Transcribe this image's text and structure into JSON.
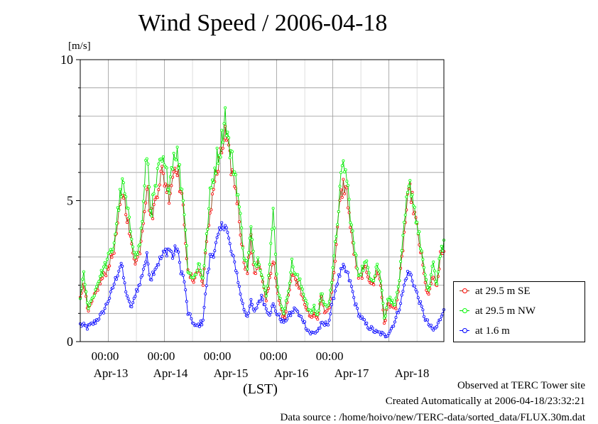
{
  "title": "Wind Speed / 2006-04-18",
  "footer": {
    "site": "Observed at TERC Tower site",
    "created": "Created Automatically at 2006-04-18/23:32:21",
    "source": "Data source : /home/hoivo/new/TERC-data/sorted_data/FLUX.30m.dat"
  },
  "chart_data": {
    "type": "line",
    "title": "Wind Speed / 2006-04-18",
    "ylabel": "[m/s]",
    "xlabel": "(LST)",
    "ylim": [
      0,
      10
    ],
    "y_ticks": [
      "0",
      "5",
      "10"
    ],
    "xlim": [
      "2006-04-12T12:00",
      "2006-04-18T24:00"
    ],
    "x_time_ticks": [
      "00:00",
      "00:00",
      "00:00",
      "00:00",
      "00:00"
    ],
    "x_date_labels": [
      "Apr-13",
      "Apr-14",
      "Apr-15",
      "Apr-16",
      "Apr-17",
      "Apr-18"
    ],
    "grid": true,
    "legend_position": "right",
    "sampling": "30-min",
    "series": [
      {
        "name": "at 29.5 m SE",
        "color": "#ff0000",
        "line_color": "#8b4513",
        "key_points": [
          [
            0,
            1.5
          ],
          [
            2,
            2.2
          ],
          [
            4,
            1.0
          ],
          [
            7,
            1.5
          ],
          [
            10,
            2.0
          ],
          [
            14,
            2.5
          ],
          [
            18,
            3.2
          ],
          [
            21,
            4.5
          ],
          [
            23,
            5.4
          ],
          [
            25,
            4.6
          ],
          [
            27,
            3.6
          ],
          [
            30,
            2.8
          ],
          [
            32,
            3.2
          ],
          [
            34,
            4.4
          ],
          [
            36,
            5.6
          ],
          [
            38,
            4.4
          ],
          [
            40,
            4.8
          ],
          [
            42,
            5.6
          ],
          [
            44,
            6.0
          ],
          [
            46,
            5.6
          ],
          [
            48,
            5.2
          ],
          [
            50,
            6.0
          ],
          [
            52,
            6.4
          ],
          [
            54,
            5.4
          ],
          [
            56,
            4.4
          ],
          [
            58,
            2.4
          ],
          [
            61,
            2.2
          ],
          [
            64,
            2.6
          ],
          [
            66,
            2.0
          ],
          [
            68,
            3.4
          ],
          [
            70,
            4.6
          ],
          [
            72,
            5.6
          ],
          [
            74,
            6.0
          ],
          [
            76,
            6.6
          ],
          [
            78,
            7.4
          ],
          [
            80,
            6.6
          ],
          [
            82,
            6.0
          ],
          [
            84,
            5.4
          ],
          [
            86,
            4.2
          ],
          [
            88,
            3.0
          ],
          [
            90,
            2.4
          ],
          [
            92,
            3.6
          ],
          [
            94,
            2.4
          ],
          [
            96,
            2.8
          ],
          [
            98,
            2.2
          ],
          [
            100,
            1.4
          ],
          [
            102,
            2.2
          ],
          [
            104,
            3.0
          ],
          [
            106,
            1.8
          ],
          [
            108,
            1.2
          ],
          [
            110,
            0.8
          ],
          [
            112,
            1.6
          ],
          [
            114,
            2.4
          ],
          [
            116,
            2.2
          ],
          [
            118,
            2.0
          ],
          [
            120,
            1.6
          ],
          [
            122,
            1.2
          ],
          [
            124,
            0.8
          ],
          [
            126,
            1.0
          ],
          [
            128,
            0.8
          ],
          [
            130,
            1.6
          ],
          [
            132,
            1.0
          ],
          [
            134,
            1.2
          ],
          [
            136,
            2.0
          ],
          [
            138,
            3.4
          ],
          [
            140,
            5.0
          ],
          [
            142,
            5.6
          ],
          [
            144,
            5.2
          ],
          [
            146,
            3.8
          ],
          [
            148,
            3.0
          ],
          [
            150,
            2.2
          ],
          [
            152,
            2.4
          ],
          [
            154,
            2.6
          ],
          [
            156,
            2.2
          ],
          [
            158,
            2.0
          ],
          [
            160,
            2.6
          ],
          [
            162,
            2.0
          ],
          [
            164,
            0.6
          ],
          [
            166,
            1.4
          ],
          [
            168,
            1.2
          ],
          [
            170,
            1.2
          ],
          [
            172,
            2.0
          ],
          [
            174,
            3.4
          ],
          [
            176,
            4.8
          ],
          [
            178,
            5.4
          ],
          [
            180,
            4.6
          ],
          [
            182,
            3.8
          ],
          [
            184,
            3.0
          ],
          [
            186,
            2.0
          ],
          [
            188,
            1.6
          ],
          [
            190,
            2.4
          ],
          [
            192,
            1.8
          ],
          [
            194,
            3.0
          ],
          [
            196,
            3.2
          ]
        ]
      },
      {
        "name": "at 29.5 m NW",
        "color": "#00ff00",
        "line_color": "#00d000",
        "key_points": [
          [
            0,
            1.6
          ],
          [
            2,
            2.4
          ],
          [
            4,
            1.2
          ],
          [
            7,
            1.6
          ],
          [
            10,
            2.2
          ],
          [
            14,
            2.8
          ],
          [
            18,
            3.4
          ],
          [
            21,
            5.0
          ],
          [
            23,
            5.6
          ],
          [
            25,
            4.8
          ],
          [
            27,
            4.0
          ],
          [
            30,
            3.0
          ],
          [
            32,
            3.4
          ],
          [
            34,
            4.8
          ],
          [
            36,
            6.8
          ],
          [
            38,
            4.6
          ],
          [
            40,
            5.2
          ],
          [
            42,
            6.0
          ],
          [
            44,
            6.4
          ],
          [
            46,
            6.0
          ],
          [
            48,
            5.6
          ],
          [
            50,
            6.6
          ],
          [
            52,
            6.8
          ],
          [
            54,
            5.8
          ],
          [
            56,
            4.8
          ],
          [
            58,
            2.6
          ],
          [
            61,
            2.2
          ],
          [
            64,
            2.8
          ],
          [
            66,
            2.2
          ],
          [
            68,
            3.6
          ],
          [
            70,
            5.2
          ],
          [
            72,
            6.0
          ],
          [
            74,
            6.6
          ],
          [
            76,
            7.0
          ],
          [
            78,
            8.2
          ],
          [
            80,
            7.0
          ],
          [
            82,
            6.4
          ],
          [
            84,
            5.8
          ],
          [
            86,
            4.6
          ],
          [
            88,
            3.2
          ],
          [
            90,
            2.6
          ],
          [
            92,
            4.0
          ],
          [
            94,
            2.6
          ],
          [
            96,
            3.0
          ],
          [
            98,
            2.4
          ],
          [
            100,
            1.6
          ],
          [
            102,
            2.8
          ],
          [
            104,
            4.6
          ],
          [
            106,
            2.2
          ],
          [
            108,
            1.4
          ],
          [
            110,
            1.0
          ],
          [
            112,
            1.8
          ],
          [
            114,
            2.8
          ],
          [
            116,
            2.4
          ],
          [
            118,
            2.2
          ],
          [
            120,
            1.8
          ],
          [
            122,
            1.4
          ],
          [
            124,
            1.0
          ],
          [
            126,
            1.2
          ],
          [
            128,
            0.9
          ],
          [
            130,
            1.8
          ],
          [
            132,
            1.2
          ],
          [
            134,
            1.4
          ],
          [
            136,
            2.4
          ],
          [
            138,
            3.8
          ],
          [
            140,
            5.4
          ],
          [
            142,
            6.4
          ],
          [
            144,
            5.6
          ],
          [
            146,
            4.2
          ],
          [
            148,
            3.2
          ],
          [
            150,
            2.4
          ],
          [
            152,
            2.6
          ],
          [
            154,
            2.8
          ],
          [
            156,
            2.4
          ],
          [
            158,
            2.2
          ],
          [
            160,
            2.8
          ],
          [
            162,
            2.2
          ],
          [
            164,
            0.8
          ],
          [
            166,
            1.6
          ],
          [
            168,
            1.4
          ],
          [
            170,
            1.4
          ],
          [
            172,
            2.2
          ],
          [
            174,
            3.6
          ],
          [
            176,
            5.0
          ],
          [
            178,
            5.6
          ],
          [
            180,
            4.8
          ],
          [
            182,
            4.0
          ],
          [
            184,
            3.2
          ],
          [
            186,
            2.2
          ],
          [
            188,
            1.8
          ],
          [
            190,
            2.8
          ],
          [
            192,
            2.0
          ],
          [
            194,
            3.2
          ],
          [
            196,
            3.4
          ]
        ]
      },
      {
        "name": "at 1.6 m",
        "color": "#0000ff",
        "line_color": "#0000ff",
        "key_points": [
          [
            0,
            0.6
          ],
          [
            4,
            0.5
          ],
          [
            8,
            0.7
          ],
          [
            12,
            1.0
          ],
          [
            16,
            1.6
          ],
          [
            20,
            2.4
          ],
          [
            22,
            2.8
          ],
          [
            24,
            2.0
          ],
          [
            26,
            1.4
          ],
          [
            28,
            1.2
          ],
          [
            30,
            1.8
          ],
          [
            32,
            2.0
          ],
          [
            34,
            2.6
          ],
          [
            36,
            3.0
          ],
          [
            38,
            2.2
          ],
          [
            40,
            2.6
          ],
          [
            42,
            2.8
          ],
          [
            44,
            3.0
          ],
          [
            46,
            3.2
          ],
          [
            48,
            3.3
          ],
          [
            50,
            3.0
          ],
          [
            52,
            3.4
          ],
          [
            54,
            2.6
          ],
          [
            56,
            2.2
          ],
          [
            58,
            1.0
          ],
          [
            60,
            0.8
          ],
          [
            62,
            0.5
          ],
          [
            64,
            0.6
          ],
          [
            66,
            0.7
          ],
          [
            68,
            2.0
          ],
          [
            70,
            3.0
          ],
          [
            72,
            3.2
          ],
          [
            74,
            3.6
          ],
          [
            76,
            4.0
          ],
          [
            78,
            4.3
          ],
          [
            80,
            3.6
          ],
          [
            82,
            3.0
          ],
          [
            84,
            2.6
          ],
          [
            86,
            1.8
          ],
          [
            88,
            1.2
          ],
          [
            90,
            0.9
          ],
          [
            92,
            1.4
          ],
          [
            94,
            1.0
          ],
          [
            96,
            1.4
          ],
          [
            98,
            1.6
          ],
          [
            100,
            1.2
          ],
          [
            102,
            1.0
          ],
          [
            104,
            1.3
          ],
          [
            106,
            1.0
          ],
          [
            108,
            0.8
          ],
          [
            110,
            0.7
          ],
          [
            112,
            0.9
          ],
          [
            114,
            1.0
          ],
          [
            116,
            1.2
          ],
          [
            118,
            0.9
          ],
          [
            120,
            0.8
          ],
          [
            122,
            0.5
          ],
          [
            124,
            0.3
          ],
          [
            126,
            0.3
          ],
          [
            128,
            0.4
          ],
          [
            130,
            0.6
          ],
          [
            132,
            0.6
          ],
          [
            134,
            0.7
          ],
          [
            136,
            1.4
          ],
          [
            138,
            2.0
          ],
          [
            140,
            2.4
          ],
          [
            142,
            2.6
          ],
          [
            144,
            2.4
          ],
          [
            146,
            2.0
          ],
          [
            148,
            1.4
          ],
          [
            150,
            1.0
          ],
          [
            152,
            0.8
          ],
          [
            154,
            0.6
          ],
          [
            156,
            0.5
          ],
          [
            158,
            0.4
          ],
          [
            160,
            0.3
          ],
          [
            162,
            0.3
          ],
          [
            164,
            0.2
          ],
          [
            166,
            0.3
          ],
          [
            168,
            0.5
          ],
          [
            170,
            0.8
          ],
          [
            172,
            1.2
          ],
          [
            174,
            1.8
          ],
          [
            176,
            2.4
          ],
          [
            178,
            2.4
          ],
          [
            180,
            2.0
          ],
          [
            182,
            1.6
          ],
          [
            184,
            1.2
          ],
          [
            186,
            0.8
          ],
          [
            188,
            0.6
          ],
          [
            190,
            0.4
          ],
          [
            192,
            0.5
          ],
          [
            194,
            0.8
          ],
          [
            196,
            1.2
          ]
        ]
      }
    ]
  }
}
